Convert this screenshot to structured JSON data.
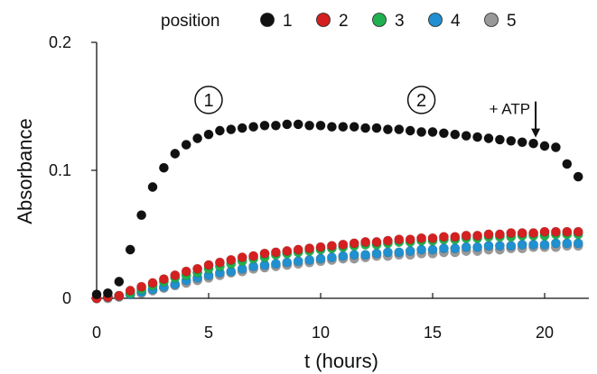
{
  "chart_data": {
    "type": "scatter",
    "title": "",
    "xlabel": "t (hours)",
    "ylabel": "Absorbance",
    "xlim": [
      0,
      21.5
    ],
    "ylim": [
      0,
      0.2
    ],
    "xticks": [
      0,
      5,
      10,
      15,
      20
    ],
    "xtick_labels": [
      "0",
      "5",
      "10",
      "15",
      "20"
    ],
    "yticks": [
      0,
      0.1,
      0.2
    ],
    "ytick_labels": [
      "0",
      "0.1",
      "0.2"
    ],
    "grid": false,
    "legend": {
      "title": "position",
      "placement": "top"
    },
    "x": [
      0,
      0.5,
      1,
      1.5,
      2,
      2.5,
      3,
      3.5,
      4,
      4.5,
      5,
      5.5,
      6,
      6.5,
      7,
      7.5,
      8,
      8.5,
      9,
      9.5,
      10,
      10.5,
      11,
      11.5,
      12,
      12.5,
      13,
      13.5,
      14,
      14.5,
      15,
      15.5,
      16,
      16.5,
      17,
      17.5,
      18,
      18.5,
      19,
      19.5,
      20,
      20.5,
      21,
      21.5
    ],
    "series": [
      {
        "name": "1",
        "color": "#111111",
        "values": [
          0.003,
          0.004,
          0.013,
          0.038,
          0.065,
          0.087,
          0.102,
          0.113,
          0.12,
          0.125,
          0.128,
          0.131,
          0.132,
          0.133,
          0.134,
          0.135,
          0.135,
          0.136,
          0.136,
          0.135,
          0.135,
          0.134,
          0.134,
          0.134,
          0.133,
          0.133,
          0.132,
          0.132,
          0.131,
          0.13,
          0.13,
          0.129,
          0.128,
          0.127,
          0.126,
          0.125,
          0.124,
          0.123,
          0.122,
          0.121,
          0.119,
          0.118,
          0.105,
          0.095
        ]
      },
      {
        "name": "2",
        "color": "#d42020",
        "values": [
          0.0,
          0.001,
          0.002,
          0.006,
          0.009,
          0.012,
          0.015,
          0.018,
          0.021,
          0.023,
          0.026,
          0.028,
          0.03,
          0.032,
          0.033,
          0.035,
          0.036,
          0.037,
          0.038,
          0.039,
          0.04,
          0.041,
          0.042,
          0.043,
          0.044,
          0.044,
          0.045,
          0.046,
          0.046,
          0.047,
          0.047,
          0.048,
          0.048,
          0.049,
          0.049,
          0.05,
          0.05,
          0.051,
          0.051,
          0.051,
          0.052,
          0.052,
          0.052,
          0.052
        ]
      },
      {
        "name": "3",
        "color": "#20b050",
        "values": [
          0.0,
          0.001,
          0.002,
          0.004,
          0.007,
          0.01,
          0.013,
          0.016,
          0.018,
          0.02,
          0.023,
          0.025,
          0.027,
          0.029,
          0.031,
          0.032,
          0.034,
          0.035,
          0.036,
          0.037,
          0.038,
          0.039,
          0.04,
          0.041,
          0.042,
          0.042,
          0.043,
          0.044,
          0.044,
          0.045,
          0.045,
          0.046,
          0.046,
          0.047,
          0.047,
          0.048,
          0.048,
          0.048,
          0.049,
          0.049,
          0.049,
          0.05,
          0.05,
          0.05
        ]
      },
      {
        "name": "4",
        "color": "#2090d0",
        "values": [
          0.0,
          0.001,
          0.002,
          0.003,
          0.005,
          0.007,
          0.009,
          0.011,
          0.014,
          0.016,
          0.018,
          0.02,
          0.021,
          0.023,
          0.025,
          0.026,
          0.027,
          0.028,
          0.029,
          0.03,
          0.031,
          0.032,
          0.033,
          0.034,
          0.034,
          0.035,
          0.036,
          0.036,
          0.037,
          0.038,
          0.038,
          0.039,
          0.039,
          0.04,
          0.04,
          0.041,
          0.041,
          0.041,
          0.042,
          0.042,
          0.042,
          0.043,
          0.043,
          0.043
        ]
      },
      {
        "name": "5",
        "color": "#999999",
        "values": [
          0.0,
          0.0,
          0.001,
          0.003,
          0.004,
          0.006,
          0.008,
          0.01,
          0.012,
          0.014,
          0.016,
          0.018,
          0.02,
          0.021,
          0.023,
          0.024,
          0.025,
          0.026,
          0.027,
          0.028,
          0.029,
          0.03,
          0.031,
          0.031,
          0.032,
          0.033,
          0.033,
          0.034,
          0.034,
          0.035,
          0.035,
          0.036,
          0.036,
          0.037,
          0.037,
          0.038,
          0.038,
          0.039,
          0.039,
          0.04,
          0.04,
          0.04,
          0.041,
          0.041
        ]
      }
    ],
    "annotations": [
      {
        "text": "1",
        "style": "circled",
        "x": 5,
        "y": 0.155
      },
      {
        "text": "2",
        "style": "circled",
        "x": 14.5,
        "y": 0.155
      },
      {
        "text": "+ ATP",
        "style": "arrow",
        "x": 19.6,
        "y": 0.12
      }
    ]
  }
}
